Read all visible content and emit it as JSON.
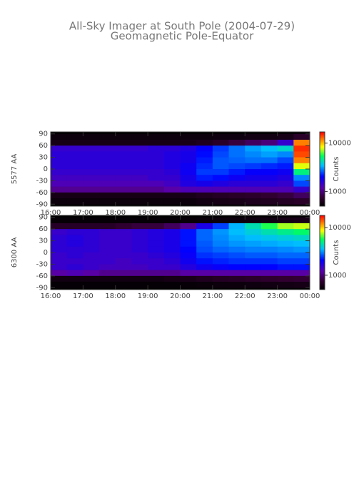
{
  "title": "All-Sky Imager at South Pole (2004-07-29)",
  "subtitle": "Geomagnetic Pole-Equator",
  "chart_data": [
    {
      "type": "heatmap",
      "ylabel": "5577 AA",
      "colorbar_label": "Counts",
      "color_scale": "log",
      "colormap": "rainbow",
      "xlim": [
        16,
        24
      ],
      "xticks": [
        {
          "value": 16,
          "label": "16:00"
        },
        {
          "value": 17,
          "label": "17:00"
        },
        {
          "value": 18,
          "label": "18:00"
        },
        {
          "value": 19,
          "label": "19:00"
        },
        {
          "value": 20,
          "label": "20:00"
        },
        {
          "value": 21,
          "label": "21:00"
        },
        {
          "value": 22,
          "label": "22:00"
        },
        {
          "value": 23,
          "label": "23:00"
        },
        {
          "value": 24,
          "label": "00:00"
        }
      ],
      "ylim": [
        -95,
        95
      ],
      "yticks": [
        90,
        60,
        30,
        0,
        -30,
        -60,
        -90
      ],
      "clim": [
        500,
        17000
      ],
      "cticks": [
        1000,
        10000
      ],
      "x_bins": [
        16,
        16.5,
        17,
        17.5,
        18,
        18.5,
        19,
        19.5,
        20,
        20.5,
        21,
        21.5,
        22,
        22.5,
        23,
        23.5,
        24
      ],
      "y_bins": [
        90,
        75,
        60,
        45,
        30,
        15,
        0,
        -15,
        -30,
        -45,
        -60,
        -75,
        -90
      ],
      "values": [
        [
          550,
          550,
          550,
          550,
          550,
          550,
          550,
          550,
          560,
          560,
          570,
          570,
          580,
          580,
          600,
          700
        ],
        [
          600,
          600,
          600,
          600,
          600,
          600,
          600,
          600,
          620,
          650,
          700,
          800,
          900,
          1000,
          1500,
          12000
        ],
        [
          1500,
          1500,
          1500,
          1500,
          1500,
          1500,
          1600,
          1600,
          1700,
          2000,
          2400,
          2800,
          3200,
          3500,
          4000,
          15000
        ],
        [
          1600,
          1600,
          1600,
          1600,
          1600,
          1600,
          1600,
          1700,
          1800,
          2100,
          2500,
          2800,
          3000,
          3200,
          3000,
          14000
        ],
        [
          1600,
          1600,
          1600,
          1600,
          1600,
          1600,
          1600,
          1700,
          1800,
          2200,
          2600,
          2700,
          2800,
          2800,
          2500,
          12000
        ],
        [
          1600,
          1600,
          1600,
          1600,
          1600,
          1600,
          1600,
          1700,
          1900,
          2300,
          2600,
          2500,
          2400,
          2300,
          2200,
          8000
        ],
        [
          1500,
          1500,
          1500,
          1500,
          1500,
          1500,
          1500,
          1600,
          1900,
          2400,
          2400,
          2200,
          2000,
          2000,
          1900,
          5000
        ],
        [
          1400,
          1400,
          1400,
          1400,
          1400,
          1400,
          1500,
          1500,
          1800,
          2200,
          2100,
          1900,
          1800,
          1800,
          1700,
          3000
        ],
        [
          1300,
          1300,
          1300,
          1300,
          1300,
          1300,
          1300,
          1400,
          1700,
          1800,
          1700,
          1600,
          1600,
          1600,
          1500,
          2500
        ],
        [
          1100,
          1100,
          1100,
          1100,
          1100,
          1100,
          1100,
          1200,
          1300,
          1300,
          1300,
          1300,
          1300,
          1300,
          1300,
          1500
        ],
        [
          600,
          600,
          600,
          600,
          600,
          600,
          600,
          600,
          620,
          650,
          680,
          700,
          720,
          750,
          800,
          900
        ],
        [
          550,
          550,
          550,
          550,
          550,
          550,
          550,
          550,
          560,
          580,
          600,
          620,
          640,
          650,
          680,
          700
        ]
      ]
    },
    {
      "type": "heatmap",
      "ylabel": "6300 AA",
      "colorbar_label": "Counts",
      "color_scale": "log",
      "colormap": "rainbow",
      "xlim": [
        16,
        24
      ],
      "xticks": [
        {
          "value": 16,
          "label": "16:00"
        },
        {
          "value": 17,
          "label": "17:00"
        },
        {
          "value": 18,
          "label": "18:00"
        },
        {
          "value": 19,
          "label": "19:00"
        },
        {
          "value": 20,
          "label": "20:00"
        },
        {
          "value": 21,
          "label": "21:00"
        },
        {
          "value": 22,
          "label": "22:00"
        },
        {
          "value": 23,
          "label": "23:00"
        },
        {
          "value": 24,
          "label": "00:00"
        }
      ],
      "ylim": [
        -95,
        95
      ],
      "yticks": [
        90,
        60,
        30,
        0,
        -30,
        -60,
        -90
      ],
      "clim": [
        500,
        18000
      ],
      "cticks": [
        1000,
        10000
      ],
      "x_bins": [
        16,
        16.5,
        17,
        17.5,
        18,
        18.5,
        19,
        19.5,
        20,
        20.5,
        21,
        21.5,
        22,
        22.5,
        23,
        23.5,
        24
      ],
      "y_bins": [
        90,
        75,
        60,
        45,
        30,
        15,
        0,
        -15,
        -30,
        -45,
        -60,
        -75,
        -90
      ],
      "values": [
        [
          520,
          520,
          520,
          520,
          520,
          520,
          520,
          520,
          530,
          540,
          550,
          560,
          570,
          580,
          600,
          620
        ],
        [
          700,
          700,
          700,
          700,
          750,
          800,
          800,
          900,
          1100,
          1800,
          2500,
          3500,
          4500,
          6000,
          7500,
          8000
        ],
        [
          1500,
          1600,
          1600,
          1500,
          1500,
          1600,
          1700,
          1800,
          2200,
          2800,
          3200,
          3600,
          4000,
          4500,
          5000,
          5500
        ],
        [
          1600,
          1700,
          1600,
          1500,
          1500,
          1600,
          1700,
          1800,
          2200,
          2800,
          3100,
          3400,
          3600,
          3800,
          4000,
          4200
        ],
        [
          1600,
          1700,
          1600,
          1500,
          1500,
          1600,
          1700,
          1800,
          2200,
          2700,
          3000,
          3200,
          3300,
          3400,
          3500,
          3600
        ],
        [
          1600,
          1600,
          1600,
          1500,
          1500,
          1600,
          1700,
          1800,
          2100,
          2600,
          2800,
          2900,
          3000,
          3000,
          3100,
          3200
        ],
        [
          1500,
          1600,
          1500,
          1500,
          1500,
          1500,
          1600,
          1700,
          2000,
          2400,
          2500,
          2600,
          2700,
          2700,
          2800,
          2800
        ],
        [
          1500,
          1500,
          1500,
          1500,
          1400,
          1500,
          1500,
          1600,
          1900,
          2200,
          2300,
          2400,
          2400,
          2400,
          2500,
          2500
        ],
        [
          1500,
          1600,
          1500,
          1400,
          1400,
          1400,
          1500,
          1500,
          1700,
          1900,
          2000,
          2100,
          2100,
          2100,
          2200,
          2200
        ],
        [
          1200,
          1300,
          1200,
          1100,
          1100,
          1100,
          1100,
          1100,
          1200,
          1200,
          1200,
          1200,
          1200,
          1200,
          1200,
          1200
        ],
        [
          580,
          580,
          580,
          580,
          580,
          580,
          580,
          600,
          620,
          650,
          680,
          700,
          720,
          740,
          760,
          780
        ],
        [
          520,
          520,
          520,
          520,
          520,
          520,
          520,
          520,
          530,
          540,
          550,
          560,
          570,
          580,
          590,
          600
        ]
      ]
    }
  ]
}
